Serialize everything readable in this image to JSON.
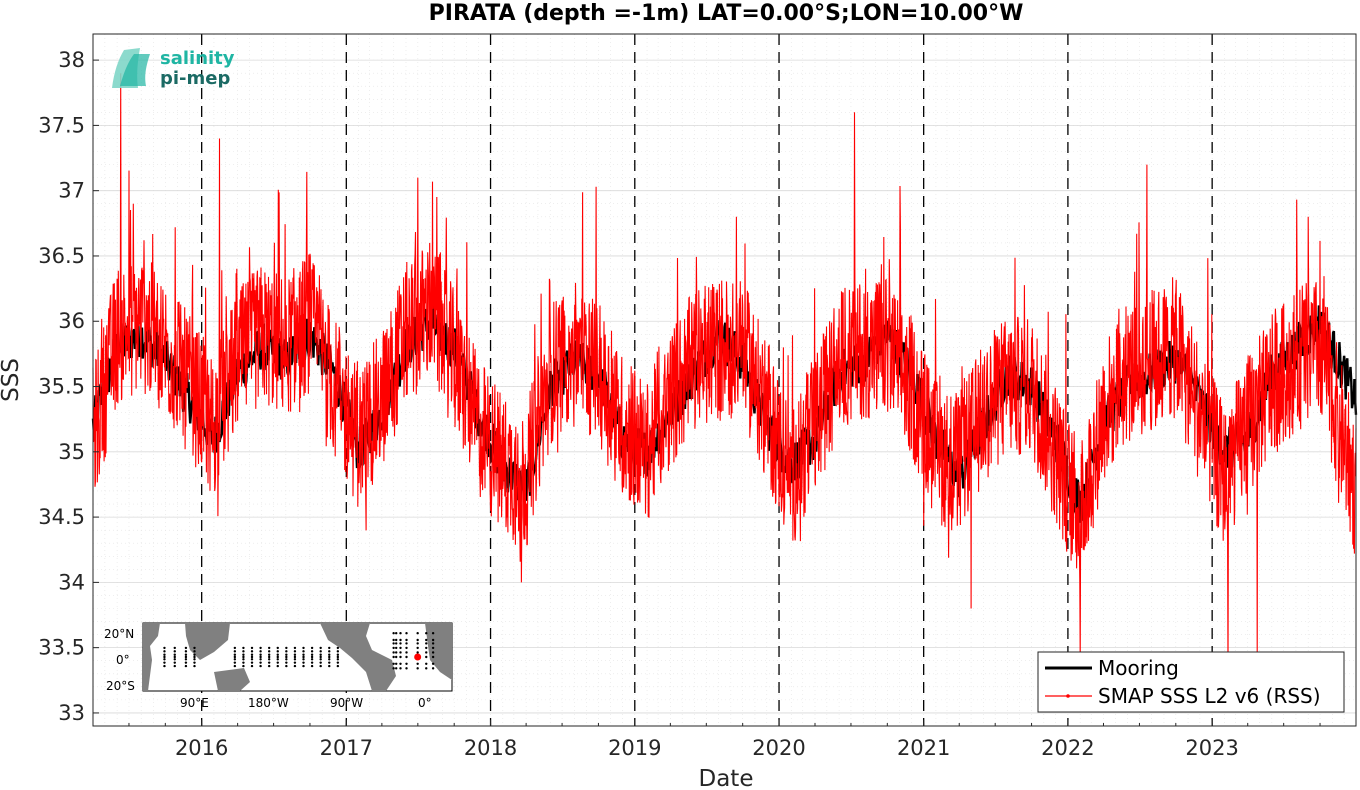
{
  "logo": {
    "line1": "salinity",
    "line2": "pi-mep"
  },
  "inset_map": {
    "lat_labels": [
      "20°N",
      "0°",
      "20°S"
    ],
    "lon_labels": [
      "90°E",
      "180°W",
      "90°W",
      "0°"
    ],
    "marker_lat": 0.0,
    "marker_lon": -10.0
  },
  "colors": {
    "mooring": "#000000",
    "smap": "#ff0000",
    "axes": "#262626",
    "grid": "#d9d9d9"
  },
  "chart_data": {
    "type": "line",
    "title": "PIRATA (depth =-1m) LAT=0.00°S;LON=10.00°W",
    "xlabel": "Date",
    "ylabel": "SSS",
    "xlim": [
      "2015-04-01",
      "2023-12-31"
    ],
    "ylim": [
      32.9,
      38.2
    ],
    "yticks": [
      33,
      33.5,
      34,
      34.5,
      35,
      35.5,
      36,
      36.5,
      37,
      37.5,
      38
    ],
    "ytick_labels": [
      "33",
      "33.5",
      "34",
      "34.5",
      "35",
      "35.5",
      "36",
      "36.5",
      "37",
      "37.5",
      "38"
    ],
    "xticks": [
      "2016-01-01",
      "2017-01-01",
      "2018-01-01",
      "2019-01-01",
      "2020-01-01",
      "2021-01-01",
      "2022-01-01",
      "2023-01-01"
    ],
    "xtick_labels": [
      "2016",
      "2017",
      "2018",
      "2019",
      "2020",
      "2021",
      "2022",
      "2023"
    ],
    "year_boundaries_dashed": true,
    "grid": true,
    "legend_position": "bottom-right",
    "series": [
      {
        "name": "Mooring",
        "style": "thick-line",
        "x": [
          "2015-04-01",
          "2015-06-01",
          "2015-08-01",
          "2015-10-01",
          "2015-12-01",
          "2016-02-01",
          "2016-04-01",
          "2016-06-01",
          "2016-08-01",
          "2016-10-01",
          "2016-12-01",
          "2017-02-01",
          "2017-04-01",
          "2017-06-01",
          "2017-08-01",
          "2017-10-01",
          "2017-12-01",
          "2018-02-01",
          "2018-04-01",
          "2018-06-01",
          "2018-08-01",
          "2018-10-01",
          "2018-12-01",
          "2019-02-01",
          "2019-04-01",
          "2019-06-01",
          "2019-08-01",
          "2019-10-01",
          "2019-12-01",
          "2020-02-01",
          "2020-04-01",
          "2020-06-01",
          "2020-08-01",
          "2020-10-01",
          "2020-12-01",
          "2021-02-01",
          "2021-04-01",
          "2021-06-01",
          "2021-08-01",
          "2021-10-01",
          "2021-12-01",
          "2022-02-01",
          "2022-04-01",
          "2022-06-01",
          "2022-08-01",
          "2022-10-01",
          "2022-12-01",
          "2023-02-01",
          "2023-04-01",
          "2023-06-01",
          "2023-08-01",
          "2023-10-01",
          "2023-12-31"
        ],
        "values": [
          35.2,
          35.8,
          35.9,
          35.7,
          35.4,
          35.1,
          35.6,
          35.8,
          35.7,
          35.9,
          35.6,
          35.0,
          35.3,
          35.8,
          36.0,
          35.8,
          35.3,
          34.9,
          34.7,
          35.5,
          35.7,
          35.6,
          35.1,
          35.0,
          35.3,
          35.6,
          35.9,
          35.7,
          35.2,
          34.9,
          35.1,
          35.6,
          35.7,
          35.9,
          35.6,
          35.1,
          34.8,
          35.2,
          35.6,
          35.5,
          35.1,
          34.6,
          35.2,
          35.5,
          35.6,
          35.7,
          35.4,
          35.0,
          35.1,
          35.6,
          35.8,
          36.0,
          35.4
        ]
      },
      {
        "name": "SMAP SSS L2 v6 (RSS)",
        "style": "thin-line-markers",
        "x": [
          "2015-04-01",
          "2015-06-01",
          "2015-08-01",
          "2015-10-01",
          "2015-12-01",
          "2016-02-01",
          "2016-04-01",
          "2016-06-01",
          "2016-08-01",
          "2016-10-01",
          "2016-12-01",
          "2017-02-01",
          "2017-04-01",
          "2017-06-01",
          "2017-08-01",
          "2017-10-01",
          "2017-12-01",
          "2018-02-01",
          "2018-04-01",
          "2018-06-01",
          "2018-08-01",
          "2018-10-01",
          "2018-12-01",
          "2019-02-01",
          "2019-04-01",
          "2019-06-01",
          "2019-08-01",
          "2019-10-01",
          "2019-12-01",
          "2020-02-01",
          "2020-04-01",
          "2020-06-01",
          "2020-08-01",
          "2020-10-01",
          "2020-12-01",
          "2021-02-01",
          "2021-04-01",
          "2021-06-01",
          "2021-08-01",
          "2021-10-01",
          "2021-12-01",
          "2022-02-01",
          "2022-04-01",
          "2022-06-01",
          "2022-08-01",
          "2022-10-01",
          "2022-12-01",
          "2023-02-01",
          "2023-04-01",
          "2023-06-01",
          "2023-08-01",
          "2023-10-01",
          "2023-12-31"
        ],
        "values": [
          35.1,
          35.9,
          36.0,
          35.8,
          35.5,
          35.2,
          35.7,
          35.9,
          35.8,
          36.0,
          35.5,
          35.1,
          35.4,
          35.9,
          36.1,
          35.7,
          35.2,
          34.9,
          34.8,
          35.6,
          35.8,
          35.6,
          35.2,
          35.0,
          35.4,
          35.7,
          35.8,
          35.8,
          35.3,
          34.8,
          35.2,
          35.7,
          35.8,
          35.8,
          35.5,
          35.0,
          34.9,
          35.3,
          35.5,
          35.5,
          35.0,
          34.5,
          35.3,
          35.6,
          35.7,
          35.8,
          35.3,
          34.8,
          35.2,
          35.5,
          35.7,
          35.8,
          34.7
        ],
        "extremes": {
          "x": [
            "2015-06-10",
            "2016-02-15",
            "2017-07-01",
            "2018-03-20",
            "2019-09-15",
            "2020-07-10",
            "2021-05-01",
            "2022-02-01",
            "2022-07-20",
            "2023-02-10",
            "2023-04-25",
            "2023-09-01"
          ],
          "values": [
            37.9,
            37.4,
            37.1,
            34.0,
            36.8,
            37.6,
            33.8,
            33.4,
            37.2,
            33.3,
            33.4,
            36.8
          ]
        }
      }
    ]
  }
}
